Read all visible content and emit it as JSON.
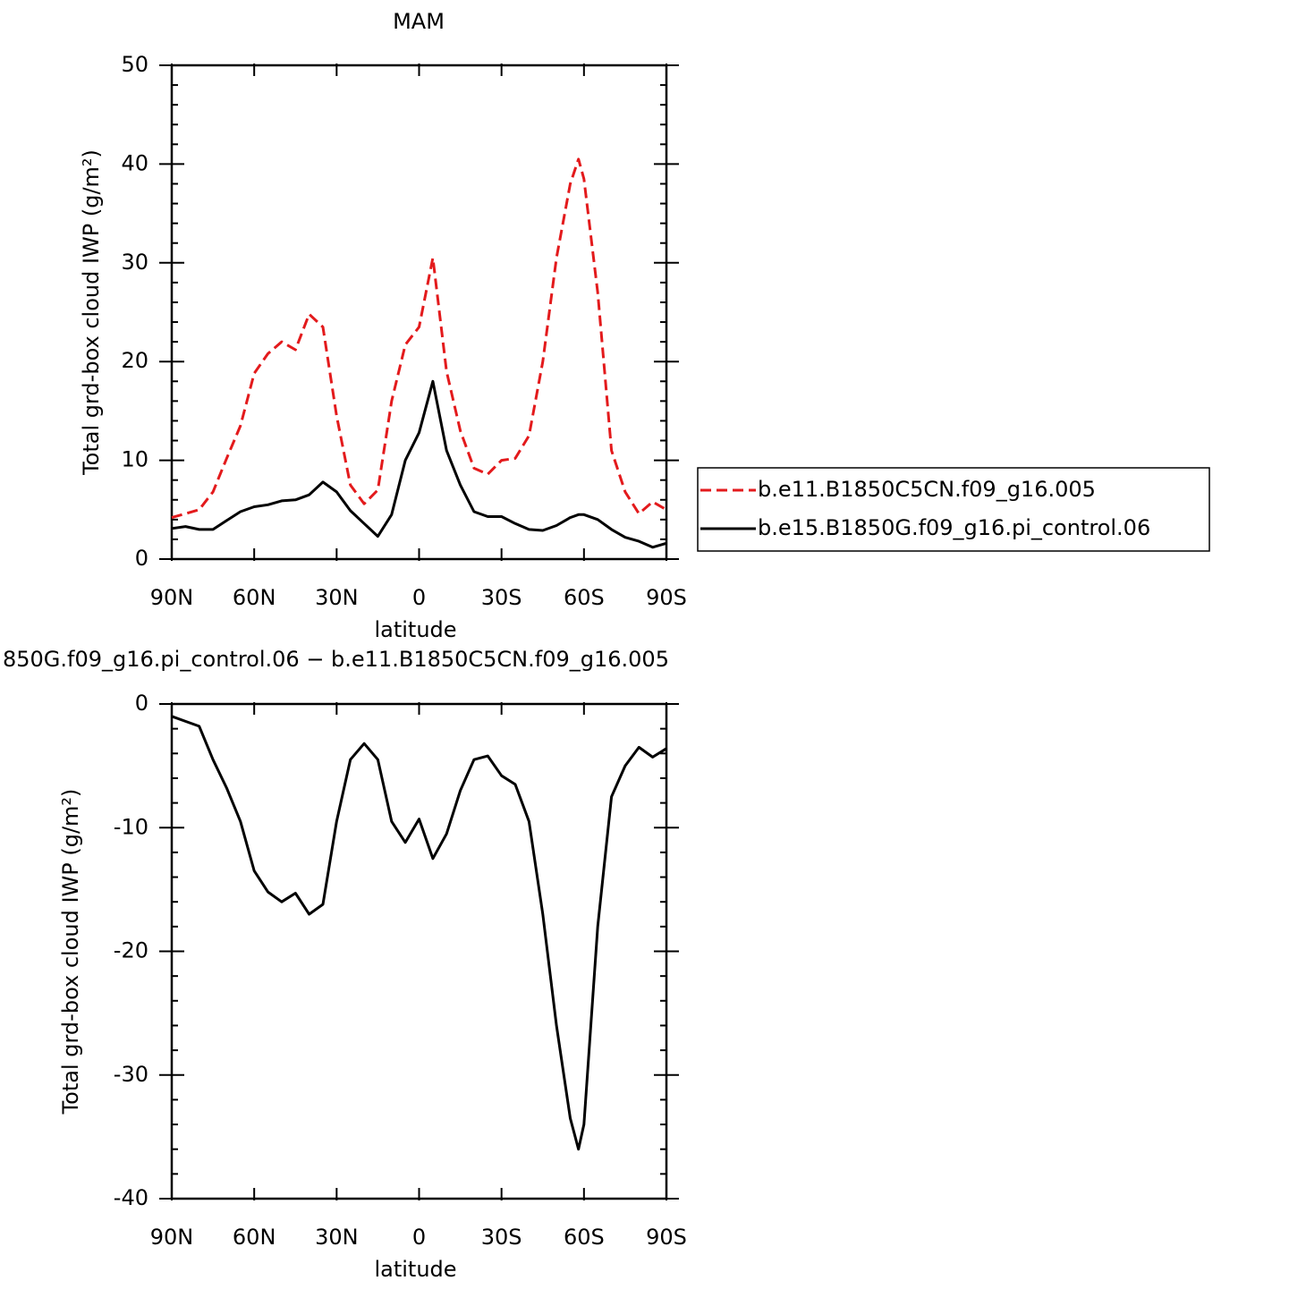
{
  "chart_data": [
    {
      "type": "line",
      "title": "MAM",
      "xlabel": "latitude",
      "ylabel": "Total grd-box cloud IWP (g/m²)",
      "x": [
        90,
        85,
        80,
        75,
        70,
        65,
        60,
        55,
        50,
        45,
        40,
        35,
        30,
        25,
        20,
        15,
        10,
        5,
        0,
        -5,
        -10,
        -15,
        -20,
        -25,
        -30,
        -35,
        -40,
        -45,
        -50,
        -55,
        -58,
        -60,
        -65,
        -70,
        -75,
        -80,
        -85,
        -90
      ],
      "series": [
        {
          "name": "b.e11.B1850C5CN.f09_g16.005",
          "color": "#e31a1c",
          "dashed": true,
          "values": [
            4.2,
            4.6,
            5.0,
            6.8,
            10.2,
            13.5,
            18.8,
            20.8,
            22.0,
            21.2,
            24.8,
            23.5,
            14.5,
            7.5,
            5.6,
            7.0,
            16,
            21.7,
            23.5,
            30.5,
            19,
            13,
            9.2,
            8.6,
            10.0,
            10.2,
            12.5,
            20,
            30.5,
            38,
            40.5,
            38.5,
            27,
            11,
            6.8,
            4.6,
            5.8,
            5.0
          ]
        },
        {
          "name": "b.e15.B1850G.f09_g16.pi_control.06",
          "color": "#000000",
          "dashed": false,
          "values": [
            3.1,
            3.3,
            3.0,
            3.0,
            3.9,
            4.8,
            5.3,
            5.5,
            5.9,
            6.0,
            6.5,
            7.8,
            6.8,
            4.9,
            3.6,
            2.3,
            4.5,
            10,
            12.8,
            18.0,
            11,
            7.5,
            4.8,
            4.3,
            4.3,
            3.6,
            3.0,
            2.9,
            3.4,
            4.2,
            4.5,
            4.5,
            4.0,
            3.0,
            2.2,
            1.8,
            1.2,
            1.6
          ]
        }
      ],
      "xlim": [
        90,
        -90
      ],
      "xticks": [
        {
          "value": 90,
          "label": "90N"
        },
        {
          "value": 60,
          "label": "60N"
        },
        {
          "value": 30,
          "label": "30N"
        },
        0,
        {
          "value": -30,
          "label": "30S"
        },
        {
          "value": -60,
          "label": "60S"
        },
        {
          "value": -90,
          "label": "90S"
        }
      ],
      "ylim": [
        0,
        50
      ],
      "yticks": [
        0,
        10,
        20,
        30,
        40,
        50
      ],
      "yminorticks": [
        2,
        4,
        6,
        8,
        12,
        14,
        16,
        18,
        22,
        24,
        26,
        28,
        32,
        34,
        36,
        38,
        42,
        44,
        46,
        48
      ],
      "legend": "right"
    },
    {
      "type": "line",
      "title": "850G.f09_g16.pi_control.06 − b.e11.B1850C5CN.f09_g16.005",
      "xlabel": "latitude",
      "ylabel": "Total grd-box cloud IWP (g/m²)",
      "x": [
        90,
        85,
        80,
        75,
        70,
        65,
        60,
        55,
        50,
        45,
        40,
        35,
        30,
        25,
        20,
        15,
        10,
        5,
        0,
        -5,
        -10,
        -15,
        -20,
        -25,
        -30,
        -35,
        -40,
        -45,
        -50,
        -55,
        -58,
        -60,
        -65,
        -70,
        -75,
        -80,
        -85,
        -90
      ],
      "color": "#000000",
      "values": [
        -1.0,
        -1.4,
        -1.8,
        -4.5,
        -6.8,
        -9.5,
        -13.5,
        -15.2,
        -16.0,
        -15.3,
        -17.0,
        -16.2,
        -9.5,
        -4.5,
        -3.2,
        -4.5,
        -9.5,
        -11.2,
        -9.3,
        -12.5,
        -10.5,
        -7.0,
        -4.5,
        -4.2,
        -5.8,
        -6.5,
        -9.5,
        -17,
        -26,
        -33.5,
        -36.0,
        -34,
        -18,
        -7.5,
        -5.0,
        -3.5,
        -4.3,
        -3.6
      ],
      "xlim": [
        90,
        -90
      ],
      "xticks": [
        {
          "value": 90,
          "label": "90N"
        },
        {
          "value": 60,
          "label": "60N"
        },
        {
          "value": 30,
          "label": "30N"
        },
        0,
        {
          "value": -30,
          "label": "30S"
        },
        {
          "value": -60,
          "label": "60S"
        },
        {
          "value": -90,
          "label": "90S"
        }
      ],
      "ylim": [
        -40,
        0
      ],
      "yticks": [
        -40,
        -30,
        -20,
        -10,
        0
      ],
      "yminorticks": [
        -38,
        -36,
        -34,
        -32,
        -28,
        -26,
        -24,
        -22,
        -18,
        -16,
        -14,
        -12,
        -8,
        -6,
        -4,
        -2
      ]
    }
  ]
}
